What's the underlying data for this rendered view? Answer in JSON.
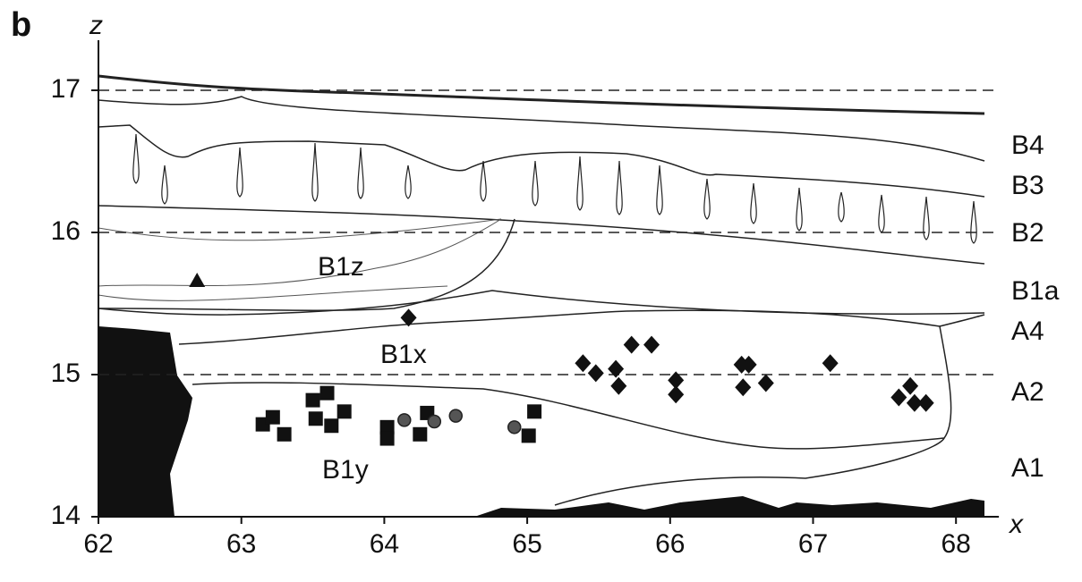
{
  "chart_data": {
    "type": "scatter",
    "panel_label": "b",
    "x_label": "x",
    "y_label": "z",
    "xlim": [
      62,
      68.3
    ],
    "ylim": [
      14,
      17.2
    ],
    "xticks": [
      62,
      63,
      64,
      65,
      66,
      67,
      68
    ],
    "yticks": [
      14,
      15,
      16,
      17
    ],
    "grid": true,
    "grid_style": "dashed",
    "layer_labels": [
      "B4",
      "B3",
      "B2",
      "B1a",
      "A4",
      "A2",
      "A1"
    ],
    "region_labels": [
      "B1z",
      "B1x",
      "B1y"
    ],
    "series": [
      {
        "marker": "diamond",
        "color": "#111111",
        "x": [
          64.17,
          65.39,
          65.48,
          65.62,
          65.64,
          65.73,
          65.87,
          66.04,
          66.04,
          66.5,
          66.55,
          66.51,
          66.67,
          67.12,
          67.6,
          67.68,
          67.71,
          67.79
        ],
        "values": [
          15.4,
          15.08,
          15.01,
          15.04,
          14.92,
          15.21,
          15.21,
          14.96,
          14.86,
          15.07,
          15.07,
          14.91,
          14.94,
          15.08,
          14.84,
          14.92,
          14.8,
          14.8
        ]
      },
      {
        "marker": "square",
        "color": "#111111",
        "x": [
          63.15,
          63.22,
          63.3,
          63.5,
          63.6,
          63.52,
          63.63,
          63.72,
          64.02,
          64.02,
          64.25,
          64.3,
          65.01,
          65.05
        ],
        "values": [
          14.65,
          14.7,
          14.58,
          14.82,
          14.87,
          14.69,
          14.64,
          14.74,
          14.63,
          14.55,
          14.58,
          14.73,
          14.57,
          14.74
        ]
      },
      {
        "marker": "circle",
        "color": "#555555",
        "x": [
          64.14,
          64.35,
          64.5,
          64.91
        ],
        "values": [
          14.68,
          14.67,
          14.71,
          14.63
        ]
      },
      {
        "marker": "triangle",
        "color": "#111111",
        "x": [
          62.69
        ],
        "values": [
          15.66
        ]
      }
    ]
  }
}
